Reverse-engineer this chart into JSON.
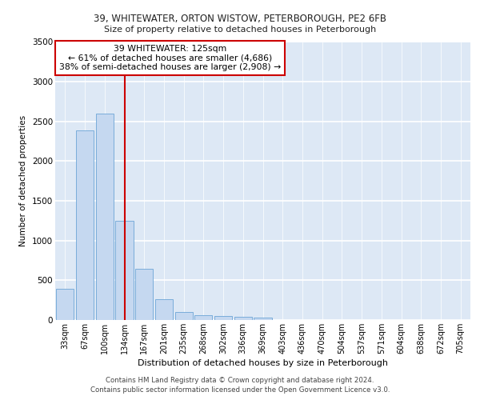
{
  "title1": "39, WHITEWATER, ORTON WISTOW, PETERBOROUGH, PE2 6FB",
  "title2": "Size of property relative to detached houses in Peterborough",
  "xlabel": "Distribution of detached houses by size in Peterborough",
  "ylabel": "Number of detached properties",
  "categories": [
    "33sqm",
    "67sqm",
    "100sqm",
    "134sqm",
    "167sqm",
    "201sqm",
    "235sqm",
    "268sqm",
    "302sqm",
    "336sqm",
    "369sqm",
    "403sqm",
    "436sqm",
    "470sqm",
    "504sqm",
    "537sqm",
    "571sqm",
    "604sqm",
    "638sqm",
    "672sqm",
    "705sqm"
  ],
  "values": [
    390,
    2390,
    2600,
    1250,
    640,
    260,
    100,
    60,
    55,
    40,
    30,
    0,
    0,
    0,
    0,
    0,
    0,
    0,
    0,
    0,
    0
  ],
  "bar_color": "#c5d8f0",
  "bar_edge_color": "#7aadda",
  "annotation_line1": "39 WHITEWATER: 125sqm",
  "annotation_line2": "← 61% of detached houses are smaller (4,686)",
  "annotation_line3": "38% of semi-detached houses are larger (2,908) →",
  "annotation_box_color": "#ffffff",
  "annotation_box_edge_color": "#cc0000",
  "line_color": "#cc0000",
  "ylim": [
    0,
    3500
  ],
  "yticks": [
    0,
    500,
    1000,
    1500,
    2000,
    2500,
    3000,
    3500
  ],
  "background_color": "#dde8f5",
  "grid_color": "#ffffff",
  "footer1": "Contains HM Land Registry data © Crown copyright and database right 2024.",
  "footer2": "Contains public sector information licensed under the Open Government Licence v3.0."
}
